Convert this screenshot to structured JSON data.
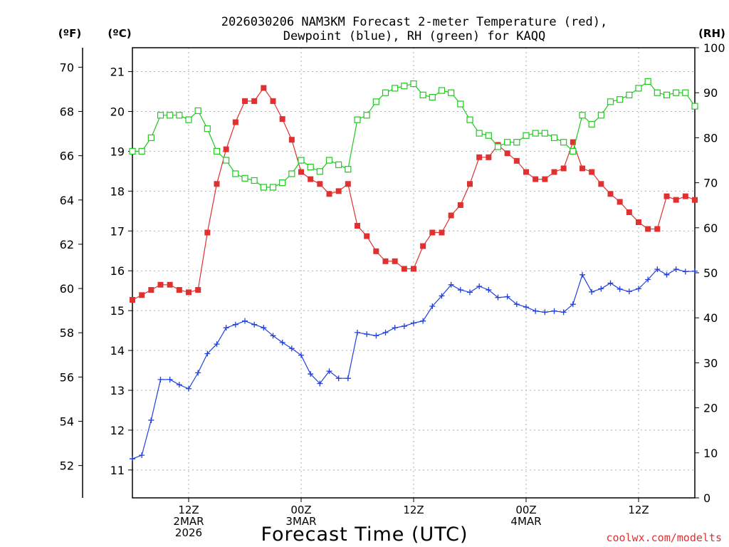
{
  "chart_data": {
    "type": "line",
    "title_line1": "2026030206 NAM3KM Forecast 2-meter Temperature (red),",
    "title_line2": "Dewpoint (blue), RH (green) for KAQQ",
    "xlabel": "Forecast Time (UTC)",
    "credit": "coolwx.com/modelts",
    "left_far_header": "(ºF)",
    "left_header": "(ºC)",
    "right_header": "(RH)",
    "x_unit": "forecast hour from 2026-03-02 06Z",
    "xlim": [
      6,
      66
    ],
    "ylim_celsius": [
      10.3,
      21.6
    ],
    "ylim_rh": [
      0,
      100
    ],
    "fahrenheit_ticks": [
      "52",
      "54",
      "56",
      "58",
      "60",
      "62",
      "64",
      "66",
      "68",
      "70"
    ],
    "celsius_ticks": [
      "11",
      "12",
      "13",
      "14",
      "15",
      "16",
      "17",
      "18",
      "19",
      "20",
      "21"
    ],
    "rh_ticks": [
      "0",
      "10",
      "20",
      "30",
      "40",
      "50",
      "60",
      "70",
      "80",
      "90",
      "100"
    ],
    "x_ticks": [
      {
        "hour": 12,
        "line1": "12Z",
        "line2": "2MAR",
        "line3": "2026"
      },
      {
        "hour": 24,
        "line1": "00Z",
        "line2": "3MAR",
        "line3": ""
      },
      {
        "hour": 36,
        "line1": "12Z",
        "line2": "",
        "line3": ""
      },
      {
        "hour": 48,
        "line1": "00Z",
        "line2": "4MAR",
        "line3": ""
      },
      {
        "hour": 60,
        "line1": "12Z",
        "line2": "",
        "line3": ""
      }
    ],
    "grid": true,
    "x": [
      6,
      7,
      8,
      9,
      10,
      11,
      12,
      13,
      14,
      15,
      16,
      17,
      18,
      19,
      20,
      21,
      22,
      23,
      24,
      25,
      26,
      27,
      28,
      29,
      30,
      31,
      32,
      33,
      34,
      35,
      36,
      37,
      38,
      39,
      40,
      41,
      42,
      43,
      44,
      45,
      46,
      47,
      48,
      49,
      50,
      51,
      52,
      53,
      54,
      55,
      56,
      57,
      58,
      59,
      60,
      61,
      62,
      63,
      64,
      65,
      66
    ],
    "series": [
      {
        "name": "Temperature",
        "axis": "celsius",
        "color": "#e03030",
        "marker": "filled-square",
        "values": [
          15.27,
          15.39,
          15.52,
          15.65,
          15.65,
          15.52,
          15.46,
          15.52,
          16.96,
          18.18,
          19.05,
          19.73,
          20.26,
          20.26,
          20.59,
          20.26,
          19.81,
          19.29,
          18.48,
          18.3,
          18.18,
          17.93,
          18.0,
          18.18,
          17.13,
          16.87,
          16.49,
          16.24,
          16.24,
          16.05,
          16.05,
          16.62,
          16.96,
          16.96,
          17.39,
          17.65,
          18.18,
          18.85,
          18.85,
          19.16,
          18.95,
          18.76,
          18.48,
          18.3,
          18.3,
          18.48,
          18.57,
          19.23,
          18.57,
          18.48,
          18.18,
          17.93,
          17.73,
          17.47,
          17.22,
          17.05,
          17.05,
          17.87,
          17.78,
          17.87,
          17.78
        ]
      },
      {
        "name": "Dewpoint",
        "axis": "celsius",
        "color": "#2040e0",
        "marker": "plus",
        "values": [
          11.28,
          11.37,
          12.25,
          13.27,
          13.27,
          13.14,
          13.04,
          13.44,
          13.92,
          14.16,
          14.57,
          14.65,
          14.74,
          14.65,
          14.57,
          14.37,
          14.2,
          14.05,
          13.88,
          13.41,
          13.17,
          13.48,
          13.3,
          13.3,
          14.45,
          14.41,
          14.37,
          14.45,
          14.57,
          14.61,
          14.69,
          14.74,
          15.11,
          15.37,
          15.65,
          15.52,
          15.46,
          15.61,
          15.52,
          15.33,
          15.35,
          15.16,
          15.09,
          14.99,
          14.96,
          14.99,
          14.96,
          15.16,
          15.9,
          15.47,
          15.55,
          15.69,
          15.54,
          15.48,
          15.55,
          15.78,
          16.04,
          15.9,
          16.04,
          15.98,
          15.99
        ]
      },
      {
        "name": "RH",
        "axis": "rh",
        "color": "#20c820",
        "marker": "open-square",
        "values": [
          77,
          77,
          80,
          85,
          85,
          85,
          84,
          86,
          82,
          77,
          75,
          72,
          71,
          70.5,
          69,
          69,
          70,
          72,
          75,
          73.5,
          72.5,
          75,
          74,
          73,
          84,
          85,
          88,
          90,
          91,
          91.5,
          92,
          89.5,
          89,
          90.5,
          90,
          87.5,
          84,
          81,
          80.5,
          78,
          79,
          79,
          80.5,
          81,
          81,
          80,
          79,
          77,
          85,
          83,
          85,
          88,
          88.5,
          89.5,
          91,
          92.5,
          90,
          89.5,
          90,
          90,
          87
        ]
      }
    ]
  }
}
